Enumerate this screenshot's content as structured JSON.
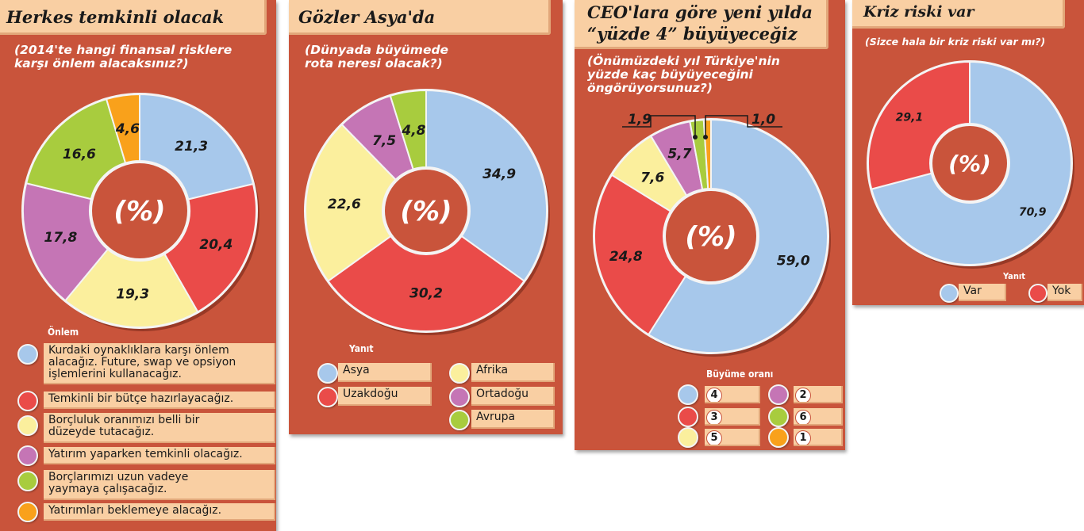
{
  "colors": {
    "blue": "#a7c8eb",
    "red": "#ea4b49",
    "yellow": "#fbef9d",
    "purple": "#c575b5",
    "green": "#a8cc3e",
    "orange": "#f9a11b",
    "panel": "#c9543b",
    "tab": "#f9cfa3"
  },
  "panel1": {
    "title": "Herkes temkinli olacak",
    "question_line1": "(2014'te hangi finansal risklere",
    "question_line2": "karşı önlem alacaksınız?)",
    "center_label": "(%)",
    "legend_title": "Önlem",
    "legend": [
      {
        "text1": "Kurdaki oynaklıklara karşı önlem",
        "text2": "alacağız. Future, swap ve opsiyon",
        "text3": "işlemlerini kullanacağız.",
        "color": "blue-icon"
      },
      {
        "text1": "Temkinli bir bütçe hazırlayacağız.",
        "color": "red-icon"
      },
      {
        "text1": "Borçluluk oranımızı belli bir",
        "text2": "düzeyde tutacağız.",
        "color": "yellow-icon"
      },
      {
        "text1": "Yatırım yaparken temkinli olacağız.",
        "color": "purple-icon"
      },
      {
        "text1": "Borçlarımızı uzun vadeye",
        "text2": "yaymaya çalışacağız.",
        "color": "green-icon"
      },
      {
        "text1": "Yatırımları beklemeye alacağız.",
        "color": "orange-icon"
      }
    ]
  },
  "panel2": {
    "title": "Gözler Asya'da",
    "question_line1": "(Dünyada büyümede",
    "question_line2": "rota neresi olacak?)",
    "center_label": "(%)",
    "legend_title": "Yanıt",
    "legend": [
      "Asya",
      "Uzakdoğu",
      "Afrika",
      "Ortadoğu",
      "Avrupa"
    ]
  },
  "panel3": {
    "title_line1": "CEO'lara göre yeni yılda",
    "title_line2": "“yüzde 4” büyüyeceğiz",
    "question_line1": "(Önümüzdeki yıl Türkiye'nin",
    "question_line2": "yüzde kaç büyüyeceğini",
    "question_line3": "öngörüyorsunuz?)",
    "center_label": "(%)",
    "legend_title": "Büyüme oranı",
    "legend": [
      "4",
      "3",
      "5",
      "2",
      "6",
      "1"
    ]
  },
  "panel4": {
    "title": "Kriz riski var",
    "question": "(Sizce hala bir kriz riski var mı?)",
    "center_label": "(%)",
    "legend_title": "Yanıt",
    "legend": [
      "Var",
      "Yok"
    ]
  },
  "chart_data": [
    {
      "type": "pie",
      "title": "Herkes temkinli olacak",
      "categories": [
        "Kurdaki oynaklıklara karşı önlem alacağız. Future, swap ve opsiyon işlemlerini kullanacağız.",
        "Temkinli bir bütçe hazırlayacağız.",
        "Borçluluk oranımızı belli bir düzeyde tutacağız.",
        "Yatırım yaparken temkinli olacağız.",
        "Borçlarımızı uzun vadeye yaymaya çalışacağız.",
        "Yatırımları beklemeye alacağız."
      ],
      "values": [
        21.3,
        20.4,
        19.3,
        17.8,
        16.6,
        4.6
      ],
      "labels": [
        "21,3",
        "20,4",
        "19,3",
        "17,8",
        "16,6",
        "4,6"
      ],
      "colors": [
        "#a7c8eb",
        "#ea4b49",
        "#fbef9d",
        "#c575b5",
        "#a8cc3e",
        "#f9a11b"
      ]
    },
    {
      "type": "pie",
      "title": "Gözler Asya'da",
      "categories": [
        "Asya",
        "Uzakdoğu",
        "Afrika",
        "Ortadoğu",
        "Avrupa"
      ],
      "values": [
        34.9,
        30.2,
        22.6,
        7.5,
        4.8
      ],
      "labels": [
        "34,9",
        "30,2",
        "22,6",
        "7,5",
        "4,8"
      ],
      "colors": [
        "#a7c8eb",
        "#ea4b49",
        "#fbef9d",
        "#c575b5",
        "#a8cc3e"
      ]
    },
    {
      "type": "pie",
      "title": "CEO'lara göre yeni yılda “yüzde 4” büyüyeceğiz",
      "categories": [
        "4",
        "3",
        "5",
        "2",
        "6",
        "1"
      ],
      "values": [
        59.0,
        24.8,
        7.6,
        5.7,
        1.9,
        1.0
      ],
      "labels": [
        "59,0",
        "24,8",
        "7,6",
        "5,7",
        "1,9",
        "1,0"
      ],
      "colors": [
        "#a7c8eb",
        "#ea4b49",
        "#fbef9d",
        "#c575b5",
        "#a8cc3e",
        "#f9a11b"
      ]
    },
    {
      "type": "pie",
      "title": "Kriz riski var",
      "categories": [
        "Var",
        "Yok"
      ],
      "values": [
        70.9,
        29.1
      ],
      "labels": [
        "70,9",
        "29,1"
      ],
      "colors": [
        "#a7c8eb",
        "#ea4b49"
      ]
    }
  ]
}
